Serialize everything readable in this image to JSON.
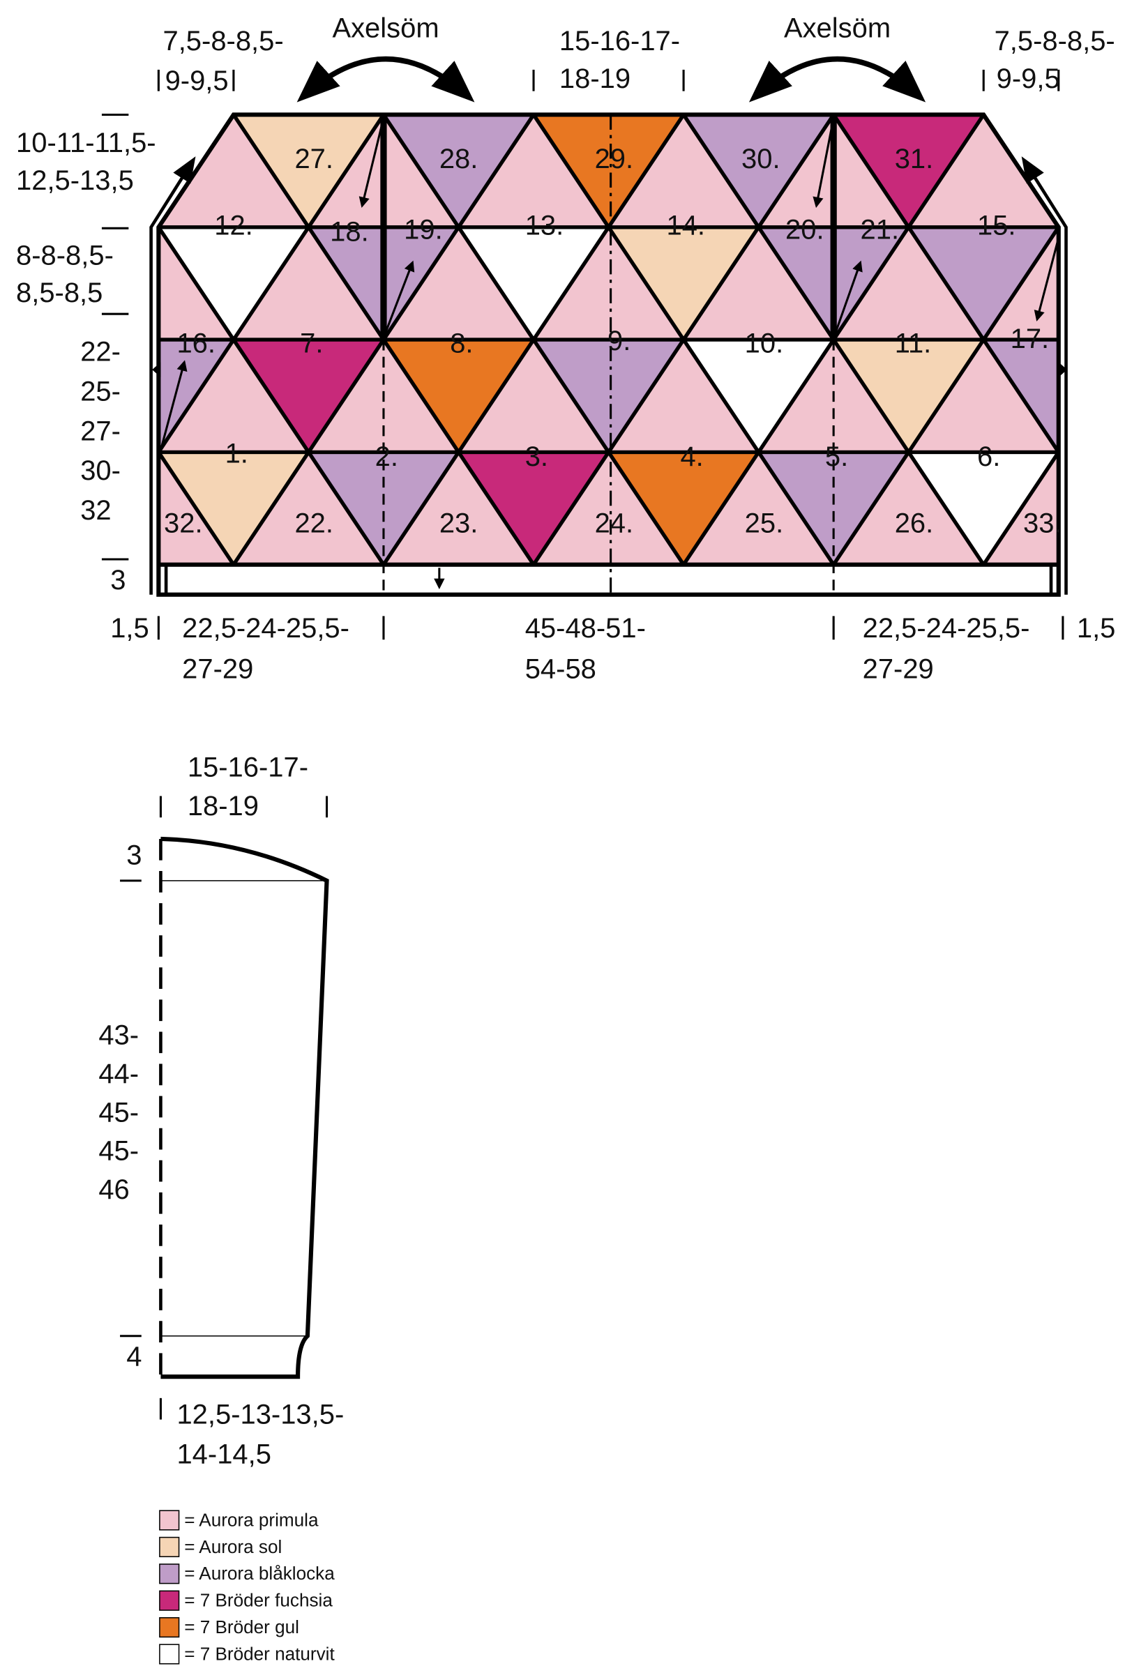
{
  "body": {
    "shoulder_seam_labels": [
      "Axelsöm",
      "Axelsöm"
    ],
    "measurements": [
      [
        "7,5-8-8,5-",
        "9-9,5"
      ],
      [
        "15-16-17-",
        "18-19"
      ],
      [
        "7,5-8-8,5-",
        "9-9,5"
      ],
      [
        "10-11-11,5-",
        "12,5-13,5"
      ],
      [
        "8-8-8,5-",
        "8,5-8,5"
      ],
      [
        "22-",
        "25-",
        "27-",
        "30-",
        "32"
      ],
      [
        "3"
      ],
      [
        "1,5"
      ],
      [
        "22,5-24-25,5-",
        "27-29"
      ],
      [
        "45-48-51-",
        "54-58"
      ],
      [
        "22,5-24-25,5-",
        "27-29"
      ],
      [
        "1,5"
      ]
    ],
    "pieces": [
      "1.",
      "2.",
      "3.",
      "4.",
      "5.",
      "6.",
      "7.",
      "8.",
      "9.",
      "10.",
      "11.",
      "12.",
      "13.",
      "14.",
      "15.",
      "16.",
      "17.",
      "18.",
      "19.",
      "20.",
      "21.",
      "22.",
      "23.",
      "24.",
      "25.",
      "26.",
      "27.",
      "28.",
      "29.",
      "30.",
      "31.",
      "32.",
      "33."
    ]
  },
  "sleeve": {
    "measurements": [
      [
        "15-16-17-",
        "18-19"
      ],
      [
        "3"
      ],
      [
        "43-",
        "44-",
        "45-",
        "45-",
        "46"
      ],
      [
        "4"
      ],
      [
        "12,5-13-13,5-",
        "14-14,5"
      ]
    ]
  },
  "legend": [
    {
      "label": "= Aurora primula",
      "color": "#f2c4cf"
    },
    {
      "label": "= Aurora sol",
      "color": "#f5d5b5"
    },
    {
      "label": "= Aurora blåklocka",
      "color": "#bf9dc8"
    },
    {
      "label": "= 7 Bröder fuchsia",
      "color": "#c8297a"
    },
    {
      "label": "= 7 Bröder gul",
      "color": "#e87722"
    },
    {
      "label": "= 7 Bröder naturvit",
      "color": "#ffffff"
    }
  ]
}
